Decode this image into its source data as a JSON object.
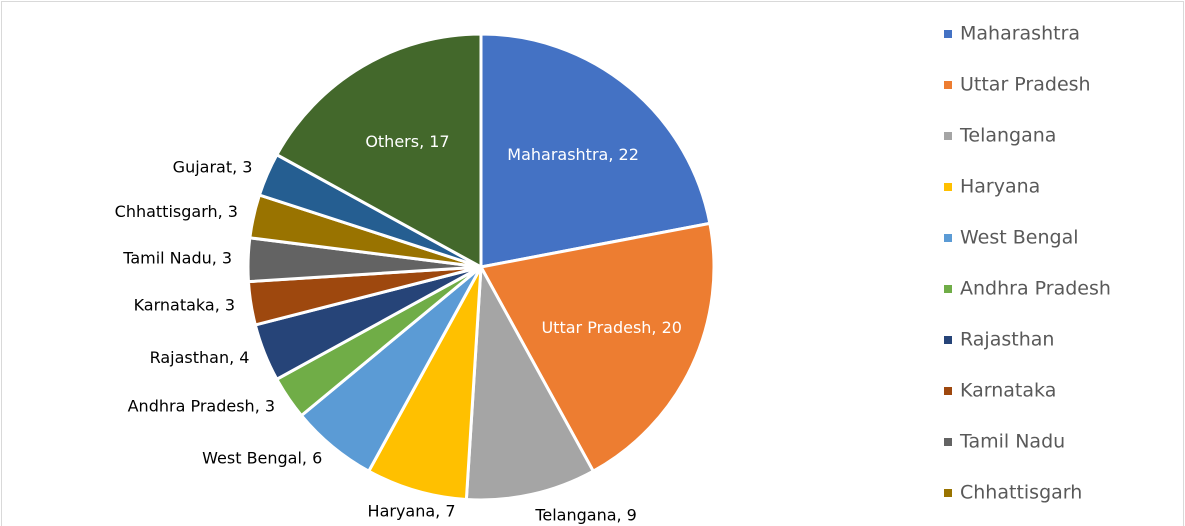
{
  "chart_data": {
    "type": "pie",
    "categories": [
      "Maharashtra",
      "Uttar Pradesh",
      "Telangana",
      "Haryana",
      "West Bengal",
      "Andhra Pradesh",
      "Rajasthan",
      "Karnataka",
      "Tamil Nadu",
      "Chhattisgarh",
      "Gujarat",
      "Others"
    ],
    "values": [
      22,
      20,
      9,
      7,
      6,
      3,
      4,
      3,
      3,
      3,
      3,
      17
    ],
    "value_labels": [
      "Maharashtra, 22",
      "Uttar Pradesh, 20",
      "Telangana, 9",
      "Haryana, 7",
      "West Bengal, 6",
      "Andhra Pradesh, 3",
      "Rajasthan, 4",
      "Karnataka, 3",
      "Tamil Nadu, 3",
      "Chhattisgarh, 3",
      "Gujarat, 3",
      "Others, 17"
    ],
    "colors": [
      "#4472c4",
      "#ed7d31",
      "#a5a5a5",
      "#ffc000",
      "#5b9bd5",
      "#70ad47",
      "#264478",
      "#9e480e",
      "#636363",
      "#997300",
      "#255e91",
      "#43682b"
    ],
    "legend": "right"
  }
}
